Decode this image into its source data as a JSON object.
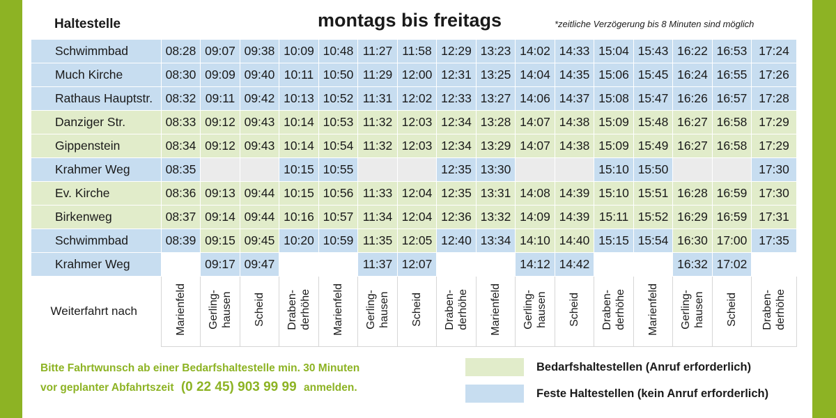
{
  "header": {
    "stop_column_label": "Haltestelle",
    "title": "montags bis freitags",
    "note": "*zeitliche Verzögerung bis 8 Minuten sind möglich"
  },
  "colors": {
    "fixed_stop": "#c7ddf0",
    "on_demand_stop": "#e1ecca",
    "empty_cell": "#ebebeb",
    "accent_green": "#8db324"
  },
  "timetable": [
    {
      "stop": "Schwimmbad",
      "times": [
        "08:28",
        "09:07",
        "09:38",
        "10:09",
        "10:48",
        "11:27",
        "11:58",
        "12:29",
        "13:23",
        "14:02",
        "14:33",
        "15:04",
        "15:43",
        "16:22",
        "16:53",
        "17:24"
      ],
      "types": [
        "b",
        "b",
        "b",
        "b",
        "b",
        "b",
        "b",
        "b",
        "b",
        "b",
        "b",
        "b",
        "b",
        "b",
        "b",
        "b"
      ]
    },
    {
      "stop": "Much Kirche",
      "times": [
        "08:30",
        "09:09",
        "09:40",
        "10:11",
        "10:50",
        "11:29",
        "12:00",
        "12:31",
        "13:25",
        "14:04",
        "14:35",
        "15:06",
        "15:45",
        "16:24",
        "16:55",
        "17:26"
      ],
      "types": [
        "b",
        "b",
        "b",
        "b",
        "b",
        "b",
        "b",
        "b",
        "b",
        "b",
        "b",
        "b",
        "b",
        "b",
        "b",
        "b"
      ]
    },
    {
      "stop": "Rathaus Hauptstr.",
      "times": [
        "08:32",
        "09:11",
        "09:42",
        "10:13",
        "10:52",
        "11:31",
        "12:02",
        "12:33",
        "13:27",
        "14:06",
        "14:37",
        "15:08",
        "15:47",
        "16:26",
        "16:57",
        "17:28"
      ],
      "types": [
        "b",
        "b",
        "b",
        "b",
        "b",
        "b",
        "b",
        "b",
        "b",
        "b",
        "b",
        "b",
        "b",
        "b",
        "b",
        "b"
      ]
    },
    {
      "stop": "Danziger Str.",
      "times": [
        "08:33",
        "09:12",
        "09:43",
        "10:14",
        "10:53",
        "11:32",
        "12:03",
        "12:34",
        "13:28",
        "14:07",
        "14:38",
        "15:09",
        "15:48",
        "16:27",
        "16:58",
        "17:29"
      ],
      "types": [
        "g",
        "g",
        "g",
        "g",
        "g",
        "g",
        "g",
        "g",
        "g",
        "g",
        "g",
        "g",
        "g",
        "g",
        "g",
        "g"
      ]
    },
    {
      "stop": "Gippenstein",
      "times": [
        "08:34",
        "09:12",
        "09:43",
        "10:14",
        "10:54",
        "11:32",
        "12:03",
        "12:34",
        "13:29",
        "14:07",
        "14:38",
        "15:09",
        "15:49",
        "16:27",
        "16:58",
        "17:29"
      ],
      "types": [
        "g",
        "g",
        "g",
        "g",
        "g",
        "g",
        "g",
        "g",
        "g",
        "g",
        "g",
        "g",
        "g",
        "g",
        "g",
        "g"
      ]
    },
    {
      "stop": "Krahmer Weg",
      "times": [
        "08:35",
        "",
        "",
        "10:15",
        "10:55",
        "",
        "",
        "12:35",
        "13:30",
        "",
        "",
        "15:10",
        "15:50",
        "",
        "",
        "17:30"
      ],
      "types": [
        "b",
        "e",
        "e",
        "b",
        "b",
        "e",
        "e",
        "b",
        "b",
        "e",
        "e",
        "b",
        "b",
        "e",
        "e",
        "b"
      ]
    },
    {
      "stop": "Ev. Kirche",
      "times": [
        "08:36",
        "09:13",
        "09:44",
        "10:15",
        "10:56",
        "11:33",
        "12:04",
        "12:35",
        "13:31",
        "14:08",
        "14:39",
        "15:10",
        "15:51",
        "16:28",
        "16:59",
        "17:30"
      ],
      "types": [
        "g",
        "g",
        "g",
        "g",
        "g",
        "g",
        "g",
        "g",
        "g",
        "g",
        "g",
        "g",
        "g",
        "g",
        "g",
        "g"
      ]
    },
    {
      "stop": "Birkenweg",
      "times": [
        "08:37",
        "09:14",
        "09:44",
        "10:16",
        "10:57",
        "11:34",
        "12:04",
        "12:36",
        "13:32",
        "14:09",
        "14:39",
        "15:11",
        "15:52",
        "16:29",
        "16:59",
        "17:31"
      ],
      "types": [
        "g",
        "g",
        "g",
        "g",
        "g",
        "g",
        "g",
        "g",
        "g",
        "g",
        "g",
        "g",
        "g",
        "g",
        "g",
        "g"
      ]
    },
    {
      "stop": "Schwimmbad",
      "times": [
        "08:39",
        "09:15",
        "09:45",
        "10:20",
        "10:59",
        "11:35",
        "12:05",
        "12:40",
        "13:34",
        "14:10",
        "14:40",
        "15:15",
        "15:54",
        "16:30",
        "17:00",
        "17:35"
      ],
      "types": [
        "b",
        "g",
        "g",
        "b",
        "b",
        "g",
        "g",
        "b",
        "b",
        "g",
        "g",
        "b",
        "b",
        "g",
        "g",
        "b"
      ]
    },
    {
      "stop": "Krahmer Weg",
      "times": [
        "",
        "09:17",
        "09:47",
        "",
        "",
        "11:37",
        "12:07",
        "",
        "",
        "14:12",
        "14:42",
        "",
        "",
        "16:32",
        "17:02",
        ""
      ],
      "types": [
        "w",
        "b",
        "b",
        "w",
        "w",
        "b",
        "b",
        "w",
        "w",
        "b",
        "b",
        "w",
        "w",
        "b",
        "b",
        "w"
      ]
    }
  ],
  "onward": {
    "label": "Weiterfahrt nach",
    "destinations": [
      "Marienfeld",
      "Gerling-\nhausen",
      "Scheid",
      "Draben-\nderhöhe",
      "Marienfeld",
      "Gerling-\nhausen",
      "Scheid",
      "Draben-\nderhöhe",
      "Marienfeld",
      "Gerling-\nhausen",
      "Scheid",
      "Draben-\nderhöhe",
      "Marienfeld",
      "Gerling-\nhausen",
      "Scheid",
      "Draben-\nderhöhe"
    ]
  },
  "footer": {
    "line1": "Bitte Fahrtwunsch ab einer Bedarfshaltestelle min. 30 Minuten",
    "line2_pre": "vor geplanter Abfahrtszeit",
    "phone": "(0 22 45)  903 99 99",
    "line2_post": "anmelden."
  },
  "legend": {
    "on_demand": "Bedarfshaltestellen  (Anruf  erforderlich)",
    "fixed": "Feste Haltestellen (kein Anruf  erforderlich)"
  }
}
